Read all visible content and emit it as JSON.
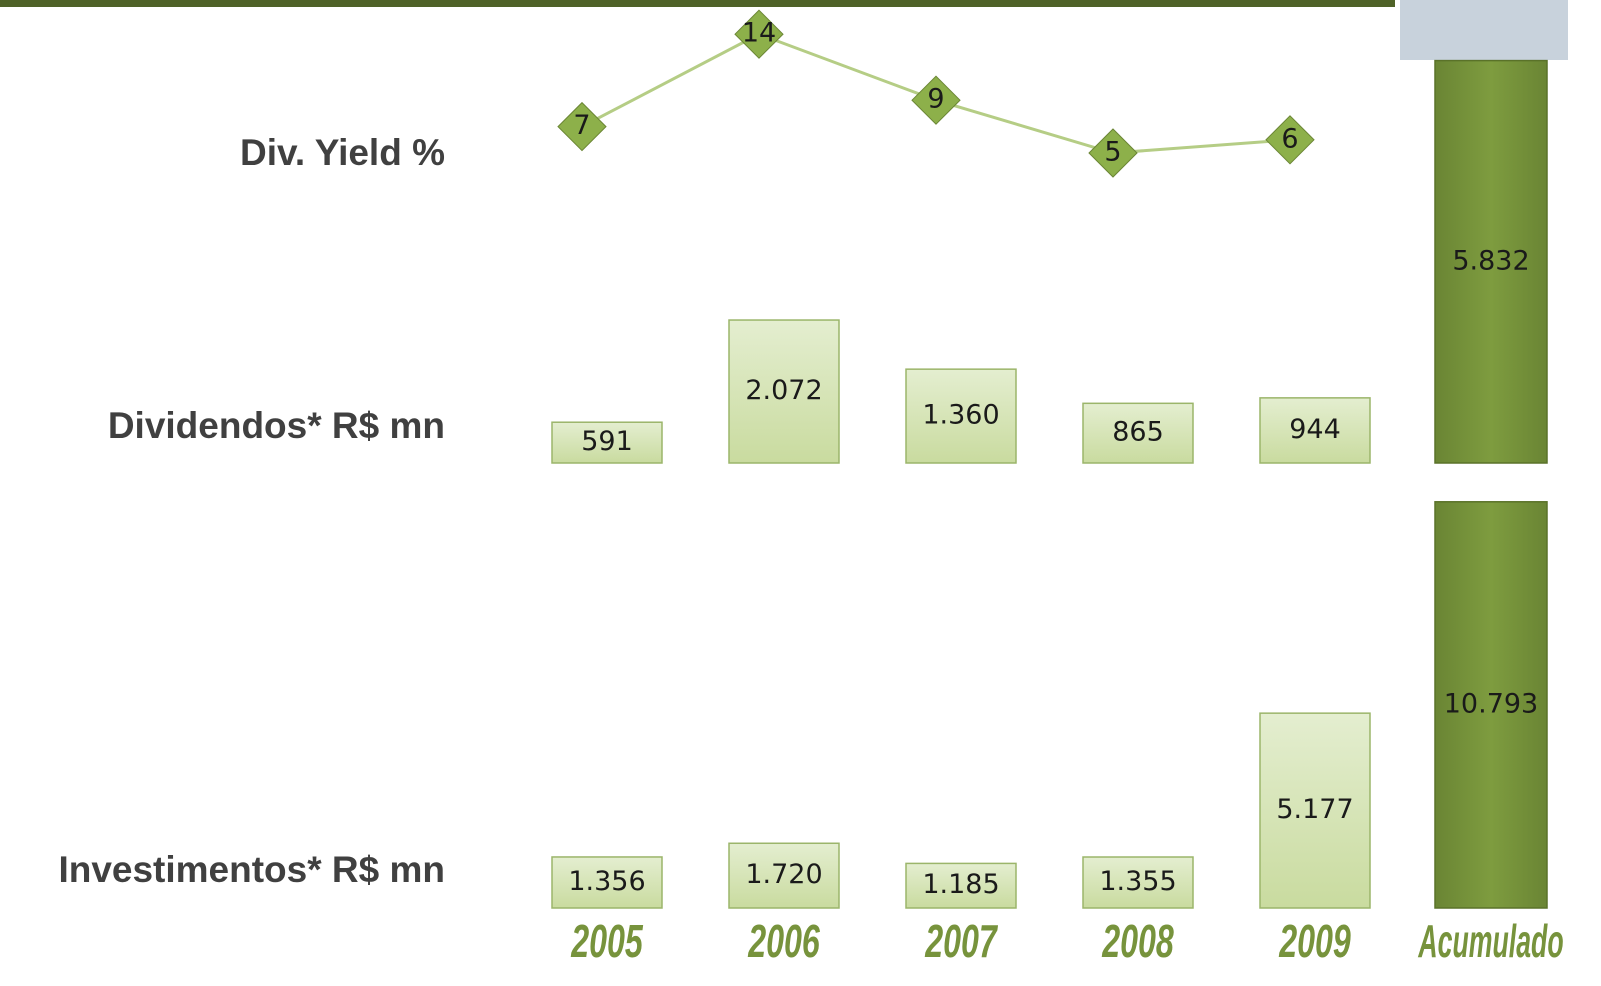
{
  "chart_data": [
    {
      "type": "line",
      "title": "Div. Yield %",
      "values": [
        7,
        14,
        9,
        5,
        6
      ],
      "ylim": [
        0,
        15
      ],
      "color": "#8db04a"
    },
    {
      "type": "bar",
      "title": "Dividendos* R$ mn",
      "values": [
        591,
        2072,
        1360,
        865,
        944,
        5832
      ],
      "value_labels": [
        "591",
        "2.072",
        "1.360",
        "865",
        "944",
        "5.832"
      ],
      "ylim": [
        0,
        6000
      ],
      "color": "#d7e4bd",
      "total_color": "#77933c"
    },
    {
      "type": "bar",
      "title": "Investimentos* R$ mn",
      "categories": [
        "2005",
        "2006",
        "2007",
        "2008",
        "2009",
        "Acumulado"
      ],
      "values": [
        1356,
        1720,
        1185,
        1355,
        5177,
        10793
      ],
      "value_labels": [
        "1.356",
        "1.720",
        "1.185",
        "1.355",
        "5.177",
        "10.793"
      ],
      "ylim": [
        0,
        11000
      ],
      "color": "#d7e4bd",
      "total_color": "#77933c"
    }
  ]
}
